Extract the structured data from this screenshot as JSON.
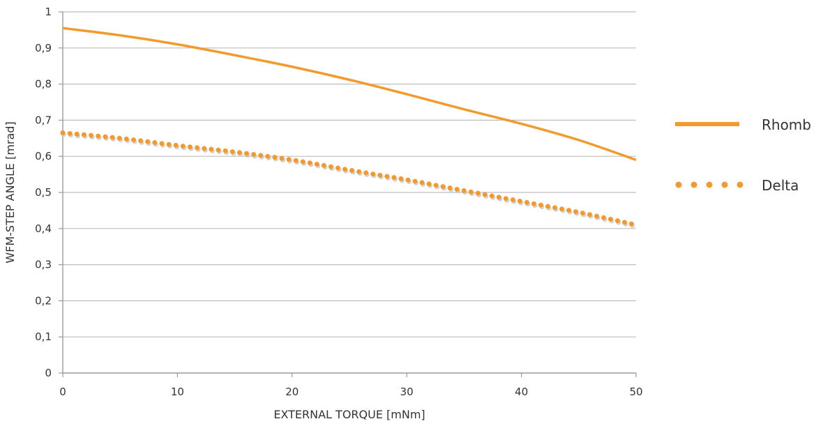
{
  "chart_data": {
    "type": "line",
    "title": "",
    "xlabel": "EXTERNAL TORQUE [mNm]",
    "ylabel": "WFM-STEP ANGLE [mrad]",
    "xlim": [
      0,
      50
    ],
    "ylim": [
      0,
      1
    ],
    "xticks": [
      "0",
      "10",
      "20",
      "30",
      "40",
      "50"
    ],
    "yticks": [
      "0",
      "0,1",
      "0,2",
      "0,3",
      "0,4",
      "0,5",
      "0,6",
      "0,7",
      "0,8",
      "0,9",
      "1"
    ],
    "grid": "horizontal",
    "legend_position": "right",
    "series": [
      {
        "name": "Rhomb",
        "style": "solid",
        "color": "#f39a2e",
        "x": [
          0,
          5,
          10,
          15,
          20,
          25,
          30,
          35,
          40,
          45,
          50
        ],
        "y": [
          0.955,
          0.935,
          0.91,
          0.88,
          0.848,
          0.812,
          0.772,
          0.73,
          0.69,
          0.645,
          0.59
        ]
      },
      {
        "name": "Delta",
        "style": "dotted",
        "color": "#f39a2e",
        "x": [
          0,
          5,
          10,
          15,
          20,
          25,
          30,
          35,
          40,
          45,
          50
        ],
        "y": [
          0.665,
          0.65,
          0.63,
          0.612,
          0.59,
          0.562,
          0.535,
          0.505,
          0.475,
          0.445,
          0.41
        ]
      }
    ]
  }
}
